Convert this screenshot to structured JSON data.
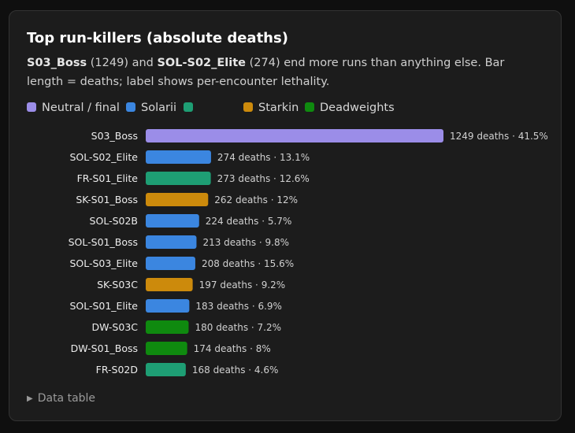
{
  "chart_data": {
    "type": "bar",
    "orientation": "horizontal",
    "title": "Top run-killers (absolute deaths)",
    "subtitle": {
      "boss1": "S03_Boss",
      "part1": " (1249) and ",
      "boss2": "SOL-S02_Elite",
      "part2": " (274) end more runs than anything else. Bar length = deaths; label shows per-encounter lethality."
    },
    "legend": [
      {
        "name": "Neutral / final",
        "color": "#9b8de8"
      },
      {
        "name": "Solarii",
        "color": "#3b86e0"
      },
      {
        "name": "",
        "color": "#1e9e74"
      },
      {
        "name": "Starkin",
        "color": "#cc8a0c"
      },
      {
        "name": "Deadweights",
        "color": "#0f8a0f"
      }
    ],
    "bars": [
      {
        "label": "S03_Boss",
        "deaths": 1249,
        "lethality": "41.5%",
        "group": "Neutral / final"
      },
      {
        "label": "SOL-S02_Elite",
        "deaths": 274,
        "lethality": "13.1%",
        "group": "Solarii"
      },
      {
        "label": "FR-S01_Elite",
        "deaths": 273,
        "lethality": "12.6%",
        "group": ""
      },
      {
        "label": "SK-S01_Boss",
        "deaths": 262,
        "lethality": "12%",
        "group": "Starkin"
      },
      {
        "label": "SOL-S02B",
        "deaths": 224,
        "lethality": "5.7%",
        "group": "Solarii"
      },
      {
        "label": "SOL-S01_Boss",
        "deaths": 213,
        "lethality": "9.8%",
        "group": "Solarii"
      },
      {
        "label": "SOL-S03_Elite",
        "deaths": 208,
        "lethality": "15.6%",
        "group": "Solarii"
      },
      {
        "label": "SK-S03C",
        "deaths": 197,
        "lethality": "9.2%",
        "group": "Starkin"
      },
      {
        "label": "SOL-S01_Elite",
        "deaths": 183,
        "lethality": "6.9%",
        "group": "Solarii"
      },
      {
        "label": "DW-S03C",
        "deaths": 180,
        "lethality": "7.2%",
        "group": "Deadweights"
      },
      {
        "label": "DW-S01_Boss",
        "deaths": 174,
        "lethality": "8%",
        "group": "Deadweights"
      },
      {
        "label": "FR-S02D",
        "deaths": 168,
        "lethality": "4.6%",
        "group": ""
      }
    ],
    "value_suffix": " deaths",
    "separator": " · ",
    "xlim": [
      0,
      1249
    ],
    "grid": false
  },
  "details_label": "Data table"
}
